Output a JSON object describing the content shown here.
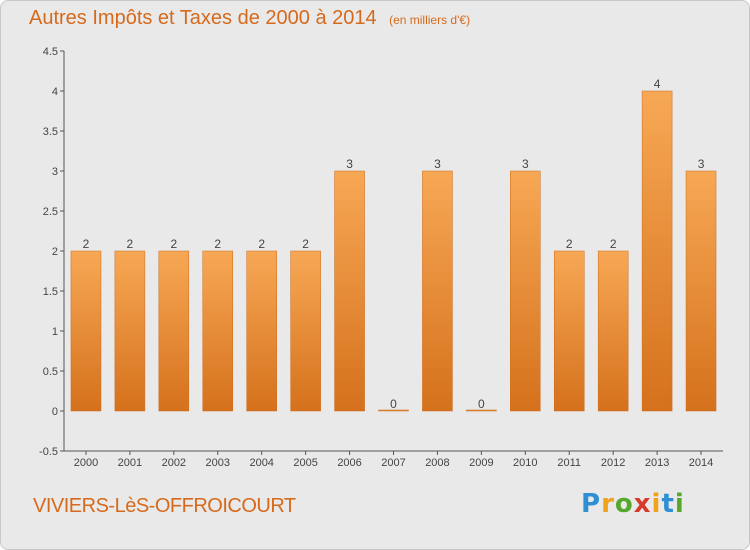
{
  "title": "Autres Impôts et Taxes de 2000 à 2014",
  "subtitle": "(en milliers d'€)",
  "commune": "VIVIERS-LèS-OFFROICOURT",
  "logo": {
    "letters": [
      "P",
      "r",
      "o",
      "x",
      "i",
      "t",
      "i"
    ],
    "colors": [
      "#2f8fd4",
      "#f0a21a",
      "#55a82c",
      "#d63a2a",
      "#f0a21a",
      "#2f8fd4",
      "#55a82c"
    ]
  },
  "colors": {
    "accent": "#d66a1c",
    "bar_light": "#f7a855",
    "bar_dark": "#d5711c",
    "background": "#e9e9e9"
  },
  "chart_data": {
    "type": "bar",
    "categories": [
      "2000",
      "2001",
      "2002",
      "2003",
      "2004",
      "2005",
      "2006",
      "2007",
      "2008",
      "2009",
      "2010",
      "2011",
      "2012",
      "2013",
      "2014"
    ],
    "values": [
      2,
      2,
      2,
      2,
      2,
      2,
      3,
      0,
      3,
      0,
      3,
      2,
      2,
      4,
      3
    ],
    "data_labels": [
      "2",
      "2",
      "2",
      "2",
      "2",
      "2",
      "3",
      "0",
      "3",
      "0",
      "3",
      "2",
      "2",
      "4",
      "3"
    ],
    "ylim": [
      -0.5,
      4.5
    ],
    "yticks": [
      -0.5,
      0,
      0.5,
      1,
      1.5,
      2,
      2.5,
      3,
      3.5,
      4,
      4.5
    ],
    "ytick_labels": [
      "-0.5",
      "0",
      "0.5",
      "1",
      "1.5",
      "2",
      "2.5",
      "3",
      "3.5",
      "4",
      "4.5"
    ],
    "grid": false,
    "legend": "none"
  }
}
